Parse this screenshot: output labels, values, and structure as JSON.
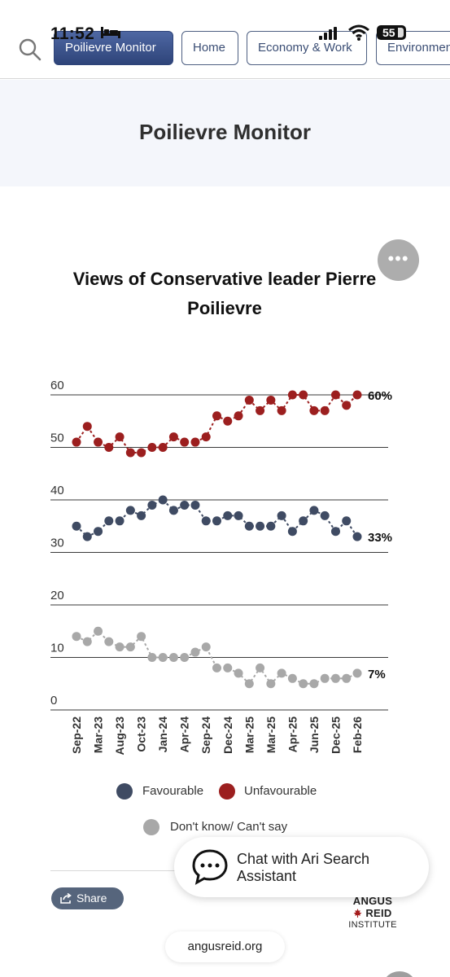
{
  "status_bar": {
    "time": "11:52",
    "battery": "55"
  },
  "nav": {
    "tabs": [
      {
        "label": "Poilievre Monitor",
        "active": true
      },
      {
        "label": "Home",
        "active": false
      },
      {
        "label": "Economy & Work",
        "active": false
      },
      {
        "label": "Environment",
        "active": false
      }
    ]
  },
  "page": {
    "title": "Poilievre Monitor"
  },
  "chart_title": "Views of Conservative leader Pierre Poilievre",
  "chart_data": {
    "type": "line",
    "title": "Views of Conservative leader Pierre Poilievre",
    "ylim": [
      0,
      60
    ],
    "y_ticks": [
      "0",
      "10",
      "20",
      "30",
      "40",
      "50",
      "60"
    ],
    "grid": true,
    "legend_position": "bottom",
    "x_ticks": [
      "Sep-22",
      "Mar-23",
      "Aug-23",
      "Oct-23",
      "Jan-24",
      "Apr-24",
      "Sep-24",
      "Dec-24",
      "Mar-25",
      "Mar-25",
      "Apr-25",
      "Jun-25",
      "Dec-25",
      "Feb-26"
    ],
    "series": [
      {
        "name": "Favourable",
        "color": "#3f4b63",
        "end_label": "33%",
        "values": [
          35,
          33,
          34,
          36,
          36,
          38,
          37,
          39,
          40,
          38,
          39,
          39,
          36,
          36,
          37,
          37,
          35,
          35,
          35,
          37,
          34,
          36,
          38,
          37,
          34,
          36,
          33
        ]
      },
      {
        "name": "Unfavourable",
        "color": "#9c1f1f",
        "end_label": "60%",
        "values": [
          51,
          54,
          51,
          50,
          52,
          49,
          49,
          50,
          50,
          52,
          51,
          51,
          52,
          56,
          55,
          56,
          59,
          57,
          59,
          57,
          60,
          60,
          57,
          57,
          60,
          58,
          60
        ]
      },
      {
        "name": "Don't know/ Can't say",
        "color": "#a8a8a8",
        "end_label": "7%",
        "values": [
          14,
          13,
          15,
          13,
          12,
          12,
          14,
          10,
          10,
          10,
          10,
          11,
          12,
          8,
          8,
          7,
          5,
          8,
          5,
          7,
          6,
          5,
          5,
          6,
          6,
          6,
          7
        ]
      }
    ]
  },
  "legend": {
    "favourable": "Favourable",
    "unfavourable": "Unfavourable",
    "dont_know": "Don't know/ Can't say"
  },
  "share": {
    "label": "Share"
  },
  "logo": {
    "line1": "ANGUS",
    "line2": "REID",
    "line3": "INSTITUTE"
  },
  "chat": {
    "label": "Chat with Ari Search Assistant"
  },
  "url": "angusreid.org"
}
